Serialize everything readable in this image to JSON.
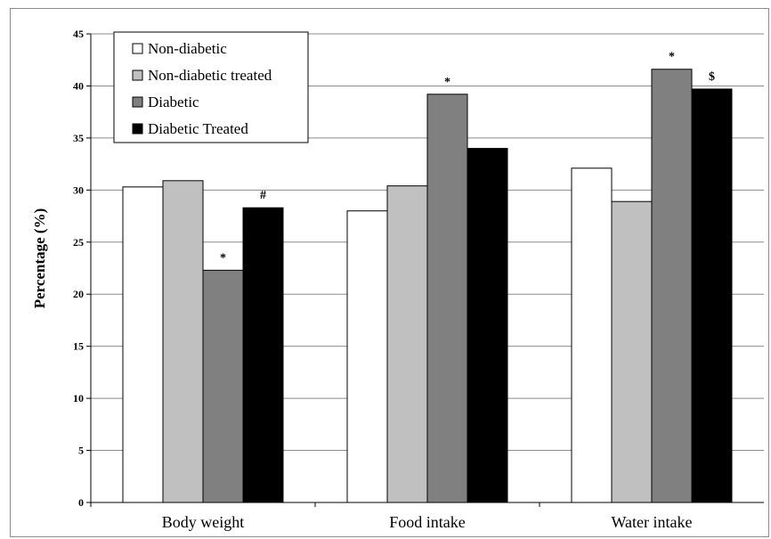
{
  "chart_data": {
    "type": "bar",
    "title": "",
    "xlabel": "",
    "ylabel": "Percentage (%)",
    "ylim": [
      0,
      45
    ],
    "yticks": [
      "0",
      "5",
      "10",
      "15",
      "20",
      "25",
      "30",
      "35",
      "40",
      "45"
    ],
    "grid": "horizontal",
    "legend_position": "top-left",
    "categories": [
      "Body weight",
      "Food intake",
      "Water intake"
    ],
    "series": [
      {
        "name": "Non-diabetic",
        "color": "#ffffff",
        "values": [
          30.3,
          28.0,
          32.1
        ]
      },
      {
        "name": "Non-diabetic treated",
        "color": "#c0c0c0",
        "values": [
          30.9,
          30.4,
          28.9
        ]
      },
      {
        "name": "Diabetic",
        "color": "#808080",
        "values": [
          22.3,
          39.2,
          41.6
        ]
      },
      {
        "name": "Diabetic Treated",
        "color": "#000000",
        "values": [
          28.3,
          34.0,
          39.7
        ]
      }
    ],
    "annotations": [
      {
        "category": 0,
        "series": 2,
        "text": "*"
      },
      {
        "category": 0,
        "series": 3,
        "text": "#"
      },
      {
        "category": 1,
        "series": 2,
        "text": "*"
      },
      {
        "category": 2,
        "series": 2,
        "text": "*"
      },
      {
        "category": 2,
        "series": 3,
        "text": "$"
      }
    ]
  }
}
